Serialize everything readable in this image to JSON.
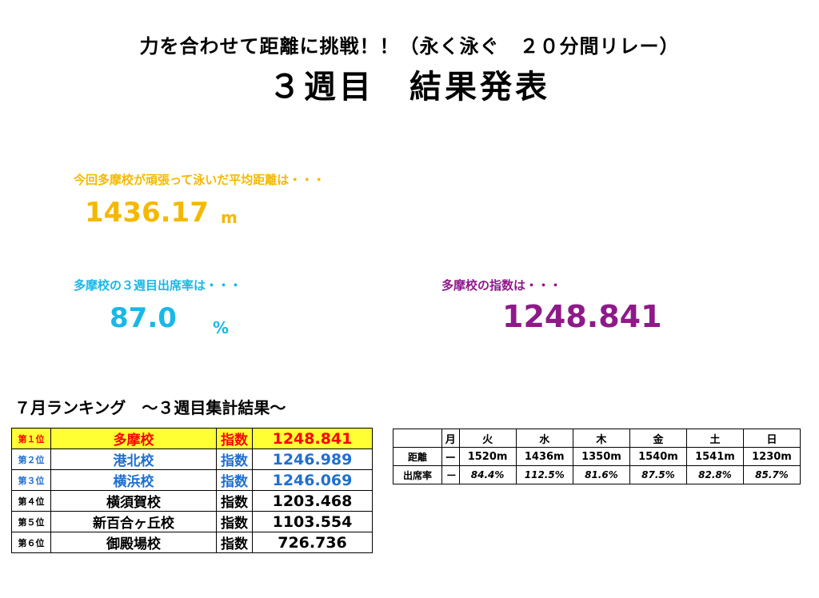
{
  "header": {
    "title_line1": "力を合わせて距離に挑戦！！（永く泳ぐ　２０分間リレー）",
    "title_line2": "３週目　結果発表"
  },
  "average_distance": {
    "label": "今回多摩校が頑張って泳いだ平均距離は・・・",
    "value": "1436.17",
    "unit": "m",
    "color": "#f5b800"
  },
  "attendance": {
    "label": "多摩校の３週目出席率は・・・",
    "value": "87.0",
    "unit": "%",
    "color": "#19b8e6"
  },
  "index_score": {
    "label": "多摩校の指数は・・・",
    "value": "1248.841",
    "color": "#8e1a8a"
  },
  "ranking": {
    "title": "７月ランキング　～３週目集計結果～",
    "rows": [
      {
        "position": "第１位",
        "school": "多摩校",
        "label": "指数",
        "value": "1248.841"
      },
      {
        "position": "第２位",
        "school": "港北校",
        "label": "指数",
        "value": "1246.989"
      },
      {
        "position": "第３位",
        "school": "横浜校",
        "label": "指数",
        "value": "1246.069"
      },
      {
        "position": "第４位",
        "school": "横須賀校",
        "label": "指数",
        "value": "1203.468"
      },
      {
        "position": "第５位",
        "school": "新百合ヶ丘校",
        "label": "指数",
        "value": "1103.554"
      },
      {
        "position": "第６位",
        "school": "御殿場校",
        "label": "指数",
        "value": "726.736"
      }
    ]
  },
  "weekly": {
    "days": [
      "月",
      "火",
      "水",
      "木",
      "金",
      "土",
      "日"
    ],
    "distance_label": "距離",
    "distance": [
      "ー",
      "1520m",
      "1436m",
      "1350m",
      "1540m",
      "1541m",
      "1230m"
    ],
    "attendance_label": "出席率",
    "attendance": [
      "ー",
      "84.4%",
      "112.5%",
      "81.6%",
      "87.5%",
      "82.8%",
      "85.7%"
    ]
  }
}
